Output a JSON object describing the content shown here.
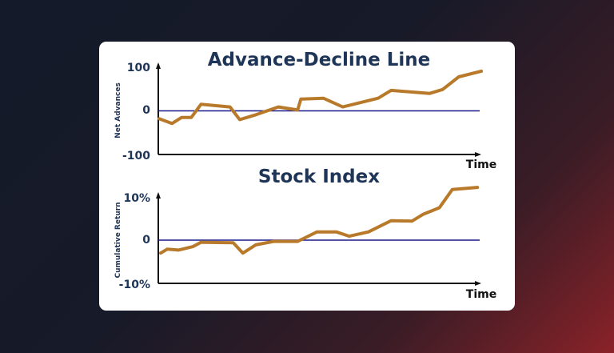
{
  "chart_data": [
    {
      "type": "line",
      "title": "Advance-Decline Line",
      "xlabel": "Time",
      "ylabel": "Net Advances",
      "yticks": [
        "100",
        "0",
        "-100"
      ],
      "ytick_values": [
        100,
        0,
        -100
      ],
      "ylim": [
        -100,
        100
      ],
      "reference_line": 0,
      "grid": false,
      "series": [
        {
          "x": [
            0,
            4,
            7,
            10,
            13,
            22,
            25,
            30,
            37,
            43,
            44,
            51,
            57,
            68,
            72,
            84,
            88,
            93,
            100
          ],
          "y": [
            -18,
            -29,
            -15,
            -15,
            15,
            9,
            -20,
            -9,
            9,
            2,
            27,
            29,
            9,
            29,
            47,
            40,
            49,
            78,
            91
          ]
        }
      ]
    },
    {
      "type": "line",
      "title": "Stock Index",
      "xlabel": "Time",
      "ylabel": "Cumulative Return",
      "yticks": [
        "10%",
        "0",
        "-10%"
      ],
      "ytick_values": [
        10,
        0,
        -10
      ],
      "ylim": [
        -10,
        10
      ],
      "reference_line": 0,
      "grid": false,
      "series": [
        {
          "x": [
            0.5,
            2.5,
            6,
            10.5,
            13.0,
            23.0,
            26,
            30,
            35.5,
            43,
            49,
            55,
            59,
            65,
            72,
            78.5,
            82,
            87,
            91,
            98.8
          ],
          "y": [
            -3.0,
            -2.1,
            -2.3,
            -1.5,
            -0.5,
            -0.6,
            -3.0,
            -1.1,
            -0.3,
            -0.3,
            1.9,
            1.9,
            0.9,
            1.9,
            4.5,
            4.4,
            6.0,
            7.5,
            11.7,
            12.2
          ]
        }
      ]
    }
  ],
  "colors": {
    "line": "#b87a2a",
    "reference": "#1a1a8c",
    "axis": "#111111",
    "text": "#1e3558"
  }
}
